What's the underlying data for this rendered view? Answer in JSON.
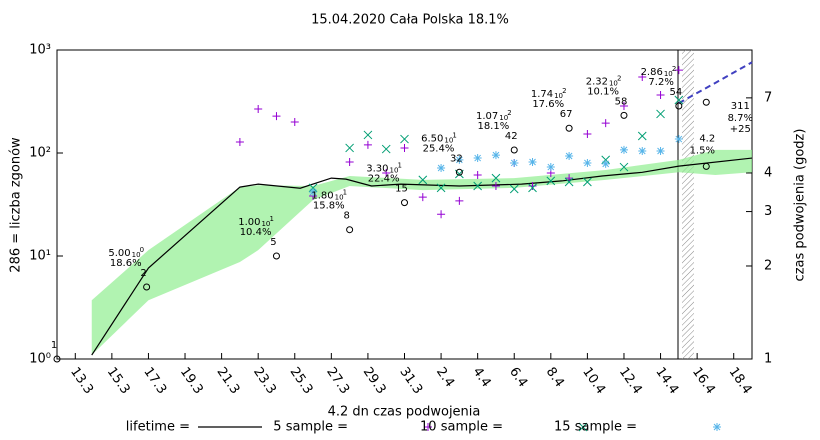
{
  "chart_data": {
    "type": "line",
    "title": "15.04.2020 Cała Polska 18.1%",
    "x_label": "4.2 dn czas podwojenia",
    "y_label": "286 = liczba zgonów",
    "y2_label": "czas podwojenia (godz)",
    "log_y": true,
    "log_y2": true,
    "xlim": [
      0,
      38
    ],
    "xticks": [
      {
        "value": 1,
        "label": "13.3"
      },
      {
        "value": 3,
        "label": "15.3"
      },
      {
        "value": 5,
        "label": "17.3"
      },
      {
        "value": 7,
        "label": "19.3"
      },
      {
        "value": 9,
        "label": "21.3"
      },
      {
        "value": 11,
        "label": "23.3"
      },
      {
        "value": 13,
        "label": "25.3"
      },
      {
        "value": 15,
        "label": "27.3"
      },
      {
        "value": 17,
        "label": "29.3"
      },
      {
        "value": 19,
        "label": "31.3"
      },
      {
        "value": 21,
        "label": "2.4"
      },
      {
        "value": 23,
        "label": "4.4"
      },
      {
        "value": 25,
        "label": "6.4"
      },
      {
        "value": 27,
        "label": "8.4"
      },
      {
        "value": 29,
        "label": "10.4"
      },
      {
        "value": 31,
        "label": "12.4"
      },
      {
        "value": 33,
        "label": "14.4"
      },
      {
        "value": 35,
        "label": "16.4"
      },
      {
        "value": 37,
        "label": "18.4"
      }
    ],
    "ylim": [
      1,
      1000
    ],
    "yticks": [
      {
        "value": 1,
        "label": "10⁰"
      },
      {
        "value": 10,
        "label": "10¹"
      },
      {
        "value": 100,
        "label": "10²"
      },
      {
        "value": 1000,
        "label": "10³"
      }
    ],
    "y2lim": [
      1,
      10
    ],
    "y2ticks": [
      1,
      2,
      3,
      4,
      7
    ],
    "series": [
      {
        "name": "lifetime =",
        "color": "#000000",
        "style": "line",
        "axis": "y2",
        "x": [
          1.9,
          5,
          10,
          11,
          13.3,
          15,
          15.8,
          17.2,
          18.8,
          22,
          25.4,
          27.6,
          29.8,
          32,
          34,
          38
        ],
        "values": [
          1.03,
          1.97,
          3.6,
          3.68,
          3.57,
          3.85,
          3.82,
          3.63,
          3.68,
          3.63,
          3.68,
          3.77,
          3.91,
          4.02,
          4.21,
          4.47
        ]
      },
      {
        "name": "5 sample =",
        "color": "#9400d3",
        "style": "plus",
        "axis": "y2",
        "x": [
          10,
          11,
          12,
          13,
          14,
          16,
          17,
          18,
          19,
          20,
          21,
          22,
          23,
          24,
          25,
          26,
          27,
          28,
          29,
          30,
          31,
          32,
          33,
          34
        ],
        "values": [
          5.04,
          6.44,
          6.11,
          5.85,
          3.37,
          4.34,
          4.93,
          4.0,
          4.82,
          3.34,
          2.94,
          3.25,
          3.94,
          3.63,
          4.31,
          3.63,
          4.0,
          3.85,
          5.35,
          5.8,
          6.59,
          8.18,
          7.15,
          8.61
        ]
      },
      {
        "name": "10 sample =",
        "color": "#009e73",
        "style": "cross",
        "axis": "y2",
        "x": [
          14,
          16,
          17,
          18,
          19,
          20,
          21,
          22,
          23,
          24,
          25,
          26,
          27,
          28,
          29,
          30,
          31,
          32,
          33,
          34
        ],
        "values": [
          3.58,
          4.82,
          5.31,
          4.78,
          5.15,
          3.8,
          3.58,
          3.97,
          3.63,
          3.85,
          3.55,
          3.58,
          3.77,
          3.74,
          3.74,
          4.41,
          4.18,
          5.27,
          6.21,
          6.89
        ]
      },
      {
        "name": "15 sample =",
        "color": "#56b4e9",
        "style": "star",
        "axis": "y2",
        "x": [
          14,
          21,
          22,
          23,
          24,
          25,
          26,
          27,
          28,
          29,
          30,
          31,
          32,
          33,
          34
        ],
        "values": [
          3.47,
          4.15,
          4.41,
          4.47,
          4.57,
          4.31,
          4.34,
          4.18,
          4.54,
          4.31,
          4.28,
          4.75,
          4.71,
          4.71,
          5.15
        ]
      }
    ],
    "band": {
      "color": "#90ee90",
      "axis": "y2",
      "x": [
        1.9,
        5,
        10,
        11,
        14,
        16,
        20,
        25,
        30,
        34,
        36,
        38
      ],
      "lower": [
        1.03,
        1.55,
        2.06,
        2.25,
        3.27,
        3.63,
        3.52,
        3.58,
        3.8,
        4.02,
        3.94,
        4.02
      ],
      "upper": [
        1.55,
        2.25,
        3.6,
        3.65,
        3.63,
        3.91,
        3.8,
        3.85,
        4.09,
        4.41,
        4.75,
        4.75
      ]
    },
    "forecast": {
      "color": "#4040c0",
      "axis": "y",
      "x": [
        34,
        36,
        38
      ],
      "values": [
        305,
        480,
        760
      ]
    },
    "circles": {
      "axis": "y",
      "x": [
        0,
        4.9,
        12,
        16,
        19,
        22,
        25,
        28,
        31,
        34
      ],
      "values": [
        1,
        5,
        10,
        18,
        33,
        65,
        107,
        174,
        232,
        286
      ],
      "labels": [
        "1",
        "2",
        "5",
        "8",
        "15",
        "32",
        "42",
        "67",
        "58",
        "54"
      ],
      "notes": [
        null,
        {
          "coefficient": "5.00",
          "base": "10",
          "exponent": "0",
          "percent": "18.6%"
        },
        {
          "coefficient": "1.00",
          "base": "10",
          "exponent": "1",
          "percent": "10.4%"
        },
        {
          "coefficient": "1.80",
          "base": "10",
          "exponent": "1",
          "percent": "15.8%"
        },
        {
          "coefficient": "3.30",
          "base": "10",
          "exponent": "1",
          "percent": "22.4%"
        },
        {
          "coefficient": "6.50",
          "base": "10",
          "exponent": "1",
          "percent": "25.4%"
        },
        {
          "coefficient": "1.07",
          "base": "10",
          "exponent": "2",
          "percent": "18.1%"
        },
        {
          "coefficient": "1.74",
          "base": "10",
          "exponent": "2",
          "percent": "17.6%"
        },
        {
          "coefficient": "2.32",
          "base": "10",
          "exponent": "2",
          "percent": "10.1%"
        },
        {
          "coefficient": "2.86",
          "base": "10",
          "exponent": "2",
          "percent": "7.2%"
        }
      ]
    },
    "end_points": [
      {
        "x": 35.5,
        "value": 311,
        "axis": "y",
        "notes": [
          "8.7%",
          "+25"
        ]
      },
      {
        "x": 35.5,
        "value": 4.2,
        "axis": "y2",
        "notes": [
          "1.5%"
        ]
      }
    ]
  }
}
